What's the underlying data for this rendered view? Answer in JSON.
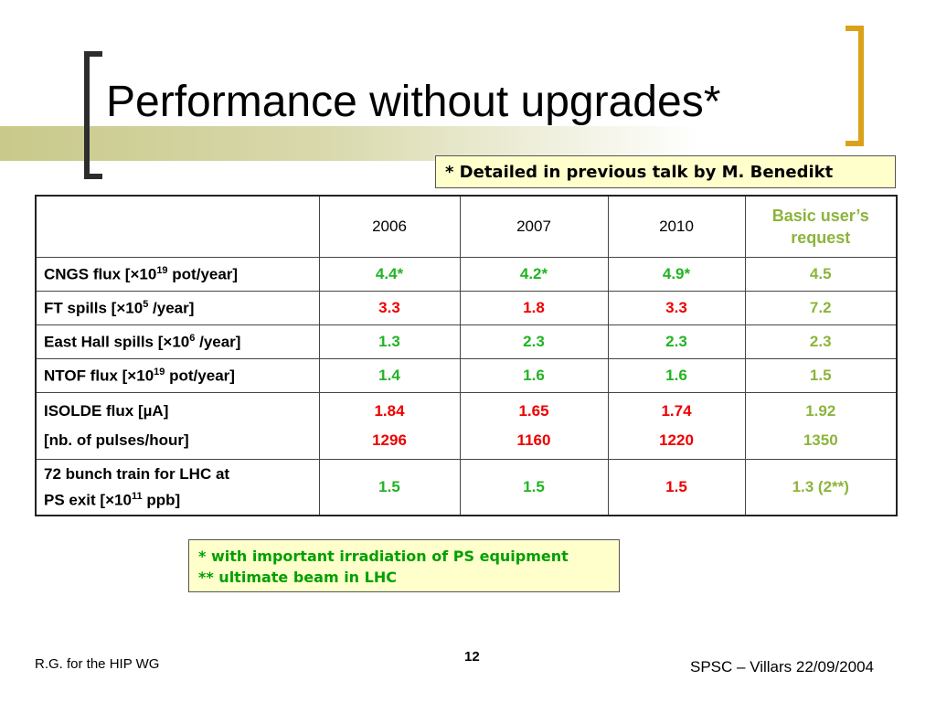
{
  "slide": {
    "title": "Performance without upgrades*",
    "note_top": "* Detailed in previous talk by M. Benedikt",
    "note_bottom": [
      "* with important irradiation of PS equipment",
      "** ultimate beam in LHC"
    ]
  },
  "table": {
    "headers": [
      "2006",
      "2007",
      "2010"
    ],
    "basic_header": [
      "Basic user’s",
      "request"
    ],
    "rows": [
      {
        "label": {
          "pre": "CNGS flux [",
          "times": "×",
          "base": "10",
          "exp": "19",
          "post": " pot/year]"
        },
        "values": [
          [
            "4.4*",
            "green"
          ],
          [
            "4.2*",
            "green"
          ],
          [
            "4.9*",
            "green"
          ],
          [
            "4.5",
            "olive"
          ]
        ]
      },
      {
        "label": {
          "pre": "FT spills [",
          "times": "×",
          "base": "10",
          "exp": "5",
          "post": " /year]"
        },
        "values": [
          [
            "3.3",
            "red"
          ],
          [
            "1.8",
            "red"
          ],
          [
            "3.3",
            "red"
          ],
          [
            "7.2",
            "olive"
          ]
        ]
      },
      {
        "label": {
          "pre": "East Hall spills [",
          "times": "×",
          "base": "10",
          "exp": "6",
          "post": " /year]"
        },
        "values": [
          [
            "1.3",
            "green"
          ],
          [
            "2.3",
            "green"
          ],
          [
            "2.3",
            "green"
          ],
          [
            "2.3",
            "olive"
          ]
        ]
      },
      {
        "label": {
          "pre": "NTOF flux [",
          "times": "×",
          "base": "10",
          "exp": "19",
          "post": " pot/year]"
        },
        "values": [
          [
            "1.4",
            "green"
          ],
          [
            "1.6",
            "green"
          ],
          [
            "1.6",
            "green"
          ],
          [
            "1.5",
            "olive"
          ]
        ]
      }
    ],
    "isolde": {
      "label1": "ISOLDE flux [µA]",
      "label2": "[nb. of pulses/hour]",
      "values": [
        [
          "1.84",
          "1296",
          "red"
        ],
        [
          "1.65",
          "1160",
          "red"
        ],
        [
          "1.74",
          "1220",
          "red"
        ],
        [
          "1.92",
          "1350",
          "olive"
        ]
      ]
    },
    "lhc": {
      "line1": "72 bunch train for LHC at",
      "line2_pre": "PS exit [",
      "times": "×",
      "base": "10",
      "exp": "11",
      "line2_post": " ppb]",
      "values": [
        [
          "1.5",
          "green"
        ],
        [
          "1.5",
          "green"
        ],
        [
          "1.5",
          "red"
        ],
        [
          "1.3 (2**)",
          "olive"
        ]
      ]
    }
  },
  "footer": {
    "left": "R.G. for the HIP WG",
    "page": "12",
    "right": "SPSC – Villars 22/09/2004"
  },
  "colors": {
    "accent_bracket": "#d9a219",
    "green_value": "#22b422",
    "red_value": "#ee0000",
    "olive_value": "#8cb43c",
    "note_bg": "#ffffcc"
  }
}
